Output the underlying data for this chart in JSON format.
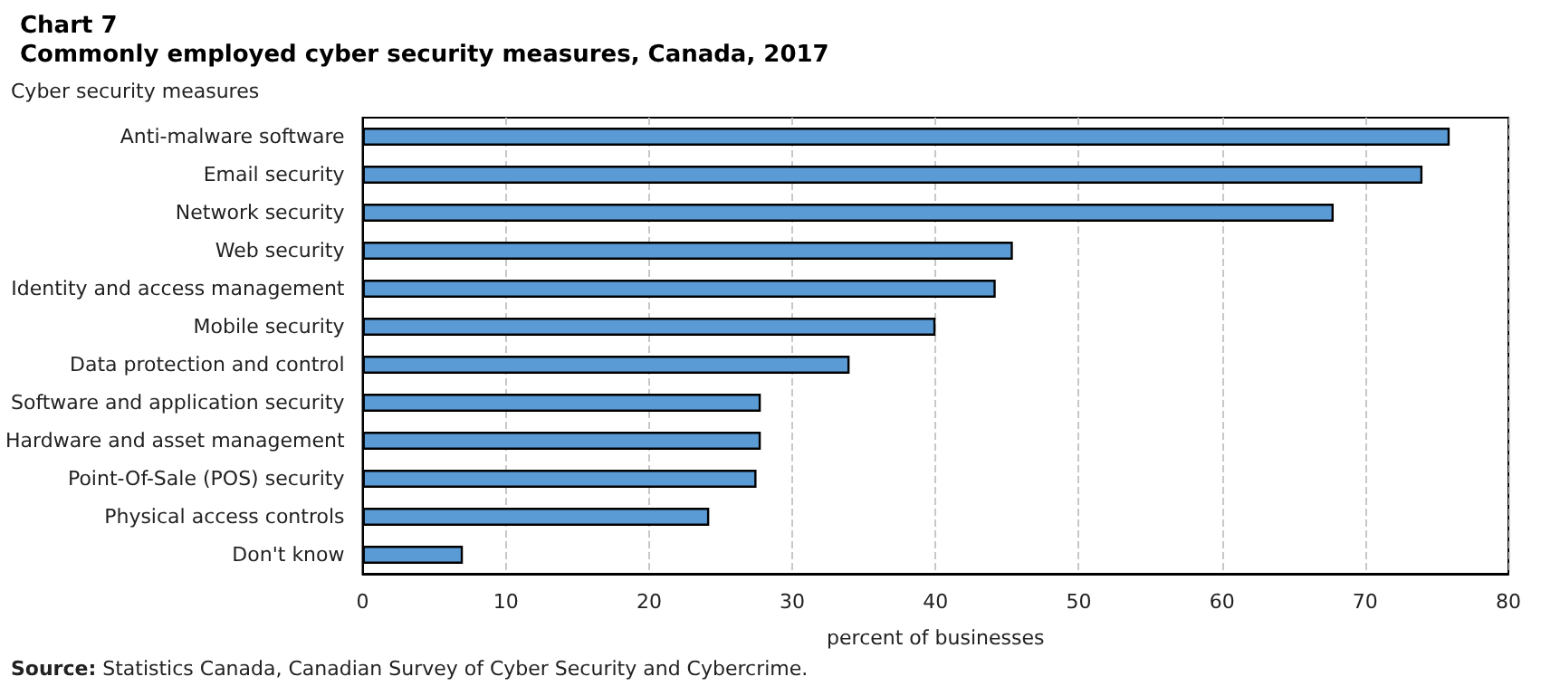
{
  "chart_data": {
    "type": "bar",
    "orientation": "horizontal",
    "title": "Chart 7",
    "subtitle": "Commonly employed cyber security measures, Canada, 2017",
    "ylabel": "Cyber security measures",
    "xlabel": "percent of businesses",
    "categories": [
      "Anti-malware software",
      "Email security",
      "Network security",
      "Web security",
      "Identity and access management",
      "Mobile security",
      "Data protection and control",
      "Software and application security",
      "Hardware and asset management",
      "Point-Of-Sale (POS) security",
      "Physical access controls",
      "Don't know"
    ],
    "values": [
      75.9,
      74.0,
      67.8,
      45.4,
      44.2,
      40.0,
      34.0,
      27.8,
      27.8,
      27.5,
      24.2,
      7.0
    ],
    "color": "#5b9bd5",
    "xlim": [
      0,
      80
    ],
    "xticks": [
      0,
      10,
      20,
      30,
      40,
      50,
      60,
      70,
      80
    ],
    "grid": "x",
    "annotations": [
      "Source: Statistics Canada, Canadian Survey of Cyber Security and Cybercrime."
    ]
  }
}
